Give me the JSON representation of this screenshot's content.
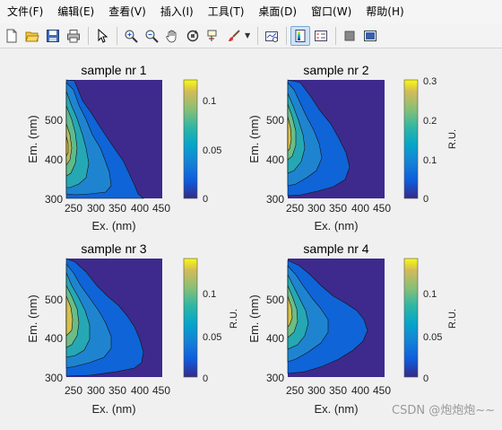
{
  "menu": {
    "items": [
      "文件(F)",
      "编辑(E)",
      "查看(V)",
      "插入(I)",
      "工具(T)",
      "桌面(D)",
      "窗口(W)",
      "帮助(H)"
    ]
  },
  "toolbar": {
    "icons": [
      "new-figure-icon",
      "open-file-icon",
      "save-icon",
      "print-icon",
      "pointer-icon",
      "zoom-in-icon",
      "zoom-out-icon",
      "pan-hand-icon",
      "rotate-3d-icon",
      "data-cursor-icon",
      "brush-icon",
      "link-plot-icon",
      "colorbar-icon",
      "legend-icon",
      "hide-plot-tools-icon",
      "show-plot-tools-icon"
    ]
  },
  "plots": [
    {
      "title": "sample nr 1",
      "colorbar_ticks": [
        "0.1",
        "0.05",
        "0"
      ],
      "colorbar_label": "",
      "peak": "0.12"
    },
    {
      "title": "sample nr 2",
      "colorbar_ticks": [
        "0.3",
        "0.2",
        "0.1",
        "0"
      ],
      "colorbar_label": "R.U.",
      "peak": "0.3"
    },
    {
      "title": "sample nr 3",
      "colorbar_ticks": [
        "0.1",
        "0.05",
        "0"
      ],
      "colorbar_label": "R.U.",
      "peak": "0.13"
    },
    {
      "title": "sample nr 4",
      "colorbar_ticks": [
        "0.1",
        "0.05",
        "0"
      ],
      "colorbar_label": "R.U.",
      "peak": "0.14"
    }
  ],
  "axes": {
    "xlabel": "Ex. (nm)",
    "ylabel": "Em. (nm)",
    "xticks": [
      "250",
      "300",
      "350",
      "400",
      "450"
    ],
    "yticks": [
      "500",
      "400",
      "300"
    ]
  },
  "watermark": "CSDN @炮炮炮~~",
  "colors": {
    "background": "#3e2a8c",
    "parula_low": "#352a87",
    "parula_mid": "#15b2d3",
    "parula_high": "#f9fb0e"
  }
}
